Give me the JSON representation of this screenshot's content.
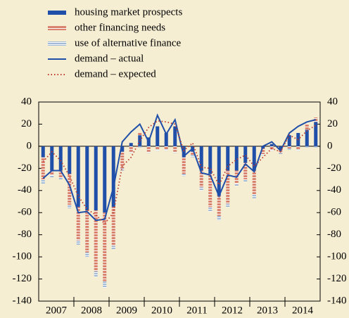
{
  "chart_data": {
    "type": "bar-line",
    "years": [
      "2007",
      "2008",
      "2009",
      "2010",
      "2011",
      "2012",
      "2013",
      "2014"
    ],
    "quarters_per_year": 4,
    "ylim": [
      -140,
      40
    ],
    "yticks": [
      40,
      20,
      0,
      -20,
      -40,
      -60,
      -80,
      -100,
      -120,
      -140
    ],
    "series": [
      {
        "name": "housing market prospects",
        "kind": "bar",
        "color": "#1f4fa8",
        "values": [
          -10,
          -22,
          -22,
          -25,
          -55,
          -58,
          -58,
          -60,
          -55,
          -5,
          3,
          10,
          8,
          18,
          12,
          18,
          -10,
          -5,
          -22,
          -25,
          -45,
          -22,
          -22,
          -15,
          -22,
          -2,
          2,
          -3,
          10,
          12,
          15,
          22
        ]
      },
      {
        "name": "other financing needs",
        "kind": "bar",
        "color": "#d9826e",
        "values": [
          -20,
          -4,
          -6,
          -28,
          -30,
          -38,
          -55,
          -62,
          -35,
          -15,
          -5,
          2,
          -5,
          -3,
          -3,
          -5,
          -15,
          -3,
          -15,
          -30,
          -18,
          -30,
          -12,
          -15,
          -22,
          -5,
          -3,
          -3,
          -2,
          -3,
          5,
          4
        ]
      },
      {
        "name": "use of alternative finance",
        "kind": "bar",
        "color": "#9fb8d6",
        "values": [
          -4,
          -2,
          -2,
          -3,
          -4,
          -4,
          -5,
          -6,
          -3,
          -2,
          -1,
          -1,
          -1,
          -1,
          -1,
          -1,
          -2,
          -2,
          -3,
          -4,
          -4,
          -3,
          -2,
          -2,
          -3,
          -1,
          -1,
          -1,
          -1,
          -1,
          -1,
          -1
        ]
      },
      {
        "name": "demand – actual",
        "kind": "line",
        "color": "#1f4fa8",
        "values": [
          -29,
          -22,
          -22,
          -35,
          -60,
          -59,
          -67,
          -66,
          -37,
          4,
          13,
          20,
          4,
          28,
          11,
          24,
          -9,
          -2,
          -24,
          -26,
          -45,
          -26,
          -28,
          -16,
          -23,
          0,
          4,
          -4,
          12,
          18,
          22,
          24
        ]
      },
      {
        "name": "demand – expected",
        "kind": "dotted",
        "color": "#c0392b",
        "values": [
          -14,
          -5,
          -13,
          -27,
          -45,
          -57,
          -62,
          -70,
          -60,
          -18,
          -10,
          5,
          17,
          23,
          22,
          20,
          -4,
          3,
          -19,
          -20,
          -35,
          -18,
          -12,
          -8,
          -18,
          -10,
          -2,
          -5,
          10,
          6,
          14,
          19
        ]
      }
    ]
  }
}
